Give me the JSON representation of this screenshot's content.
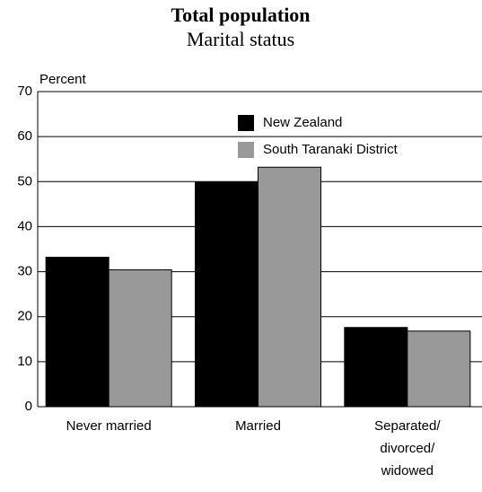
{
  "chart_data": {
    "type": "bar",
    "title": "Total population",
    "subtitle": "Marital status",
    "ylabel": "Percent",
    "categories": [
      "Never married",
      "Married",
      "Separated/\ndivorced/\nwidowed"
    ],
    "series": [
      {
        "name": "New Zealand",
        "color": "#000000",
        "values": [
          33.2,
          49.9,
          17.6
        ]
      },
      {
        "name": "South Taranaki District",
        "color": "#999999",
        "values": [
          30.4,
          53.2,
          16.8
        ]
      }
    ],
    "ylim": [
      0,
      70
    ],
    "yticks": [
      0,
      10,
      20,
      30,
      40,
      50,
      60,
      70
    ],
    "grid": true,
    "legend": "top-right"
  }
}
